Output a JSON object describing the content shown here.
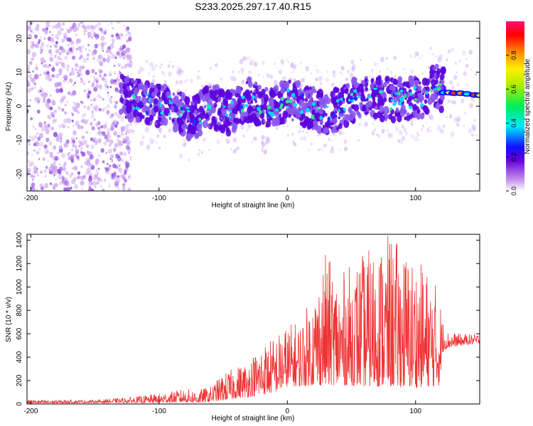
{
  "title": "S233.2025.297.17.40.R15",
  "colors": {
    "snr_line": "#ee3333",
    "spectrogram_low": "#cc99ee",
    "spectrogram_mid": "#5500dd",
    "spectrogram_high": "#00e0ff"
  },
  "chart_data": [
    {
      "type": "heatmap",
      "xlabel": "Height of straight line (km)",
      "ylabel": "Frequency (Hz)",
      "xlim": [
        -203,
        150
      ],
      "ylim": [
        -25,
        25
      ],
      "xticks": [
        -200,
        -100,
        0,
        100
      ],
      "xtick_labels": [
        "-200",
        "-100",
        "0",
        "100"
      ],
      "yticks": [
        -20,
        -10,
        0,
        10,
        20
      ],
      "ytick_labels": [
        "-20",
        "-10",
        "0",
        "10",
        "20"
      ],
      "colorbar": {
        "label": "Normalized spectral amplitude",
        "range": [
          0,
          1
        ],
        "ticks": [
          0,
          0.2,
          0.4,
          0.6,
          0.8
        ],
        "tick_labels": [
          "0.0",
          "0.2",
          "0.4",
          "0.6",
          "0.8"
        ]
      },
      "trend": {
        "x": [
          -130,
          -110,
          -90,
          -75,
          -60,
          -45,
          -30,
          -15,
          0,
          15,
          30,
          45,
          60,
          75,
          90,
          105,
          115,
          125,
          150
        ],
        "y": [
          3,
          1,
          0,
          -4,
          0,
          -2,
          2,
          -1,
          2,
          0,
          -2,
          0,
          4,
          2,
          2,
          3,
          6,
          4,
          3
        ]
      },
      "background_noise_until_x": -130
    },
    {
      "type": "line",
      "xlabel": "Height of straight line (km)",
      "ylabel": "SNR (10 * v/v)",
      "xlim": [
        -203,
        150
      ],
      "ylim": [
        0,
        1450
      ],
      "xticks": [
        -200,
        -100,
        0,
        100
      ],
      "xtick_labels": [
        "-200",
        "-100",
        "0",
        "100"
      ],
      "yticks": [
        0,
        200,
        400,
        600,
        800,
        1000,
        1200,
        1400
      ],
      "ytick_labels": [
        "0",
        "200",
        "400",
        "600",
        "800",
        "1000",
        "1200",
        "1400"
      ],
      "envelope": {
        "x": [
          -203,
          -150,
          -120,
          -100,
          -90,
          -80,
          -70,
          -60,
          -50,
          -40,
          -30,
          -20,
          -10,
          0,
          10,
          20,
          30,
          40,
          50,
          60,
          70,
          80,
          90,
          100,
          110,
          118,
          122,
          125,
          135,
          150
        ],
        "min": [
          5,
          10,
          10,
          10,
          12,
          15,
          10,
          20,
          30,
          50,
          60,
          80,
          100,
          150,
          150,
          160,
          160,
          160,
          160,
          150,
          150,
          150,
          140,
          140,
          150,
          150,
          460,
          480,
          500,
          520
        ],
        "max": [
          35,
          35,
          60,
          90,
          110,
          130,
          120,
          150,
          260,
          320,
          380,
          520,
          580,
          680,
          720,
          950,
          1300,
          1100,
          1200,
          1300,
          1380,
          1450,
          1350,
          1250,
          1150,
          1000,
          680,
          620,
          600,
          600
        ]
      }
    }
  ]
}
